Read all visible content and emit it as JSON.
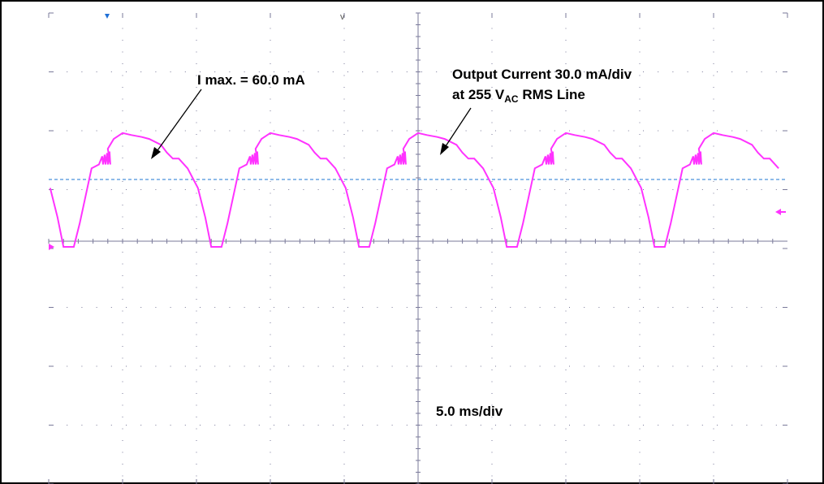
{
  "annotations": {
    "imax_label": "I max. = 60.0 mA",
    "output_line1": "Output Current 30.0 mA/div",
    "output_line2_prefix": "at 255 V",
    "output_line2_sub": "AC",
    "output_line2_suffix": " RMS Line",
    "timebase": "5.0 ms/div"
  },
  "colors": {
    "trace": "#ff33ff",
    "graticule": "#7a7a9a",
    "reference_line": "#4a90d9",
    "marker": "#1f6fd6",
    "border": "#000000"
  },
  "chart_data": {
    "type": "line",
    "x_unit": "ms",
    "y_unit": "mA",
    "x_per_div_ms": 5.0,
    "y_per_div_mA": 30.0,
    "xlim": [
      0,
      50
    ],
    "ylim": [
      -90,
      150
    ],
    "grid": true,
    "period_ms": 10.0,
    "series": [
      {
        "values_description_x": [
          0,
          0.6,
          1.3,
          1.8,
          2.2,
          2.6,
          2.9,
          3.3,
          4.1,
          4.6,
          5.2,
          5.6,
          6.2,
          6.8,
          7.5,
          8.0,
          8.8,
          9.2,
          9.6,
          10.0
        ],
        "y": [
          45,
          40,
          30,
          15,
          0,
          0,
          0,
          12,
          40,
          42,
          50,
          55,
          58,
          57,
          56,
          55,
          52,
          48,
          45,
          45
        ]
      }
    ]
  }
}
